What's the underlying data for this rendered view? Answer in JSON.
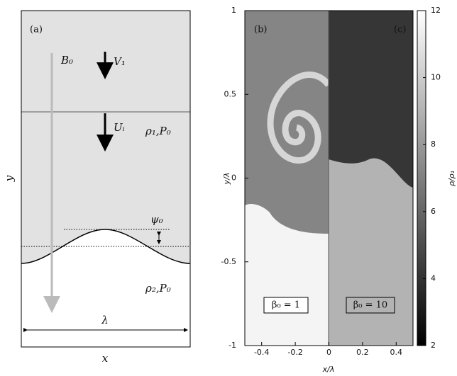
{
  "schematic": {
    "panel_label": "(a)",
    "labels": {
      "b0": "B₀",
      "v1": "V₁",
      "ui": "Uᵢ",
      "rho1": "ρ₁,P₀",
      "psi0": "ψ₀",
      "rho2": "ρ₂,P₀",
      "lambda": "λ",
      "x": "x",
      "y": "y"
    }
  },
  "chart_data": {
    "type": "image",
    "xlabel": "x/λ",
    "ylabel": "y/λ",
    "xlim": [
      -0.5,
      0.5
    ],
    "ylim": [
      -1,
      1
    ],
    "xticks": [
      -0.4,
      -0.2,
      0,
      0.2,
      0.4
    ],
    "yticks": [
      -1,
      -0.5,
      0,
      0.5,
      1
    ],
    "panel_labels": [
      "(b)",
      "(c)"
    ],
    "annotations": [
      "β₀ = 1",
      "β₀ = 10"
    ],
    "colorbar": {
      "label": "ρ/ρ₁",
      "lim": [
        2,
        12
      ],
      "ticks": [
        2,
        4,
        6,
        8,
        10,
        12
      ]
    }
  }
}
